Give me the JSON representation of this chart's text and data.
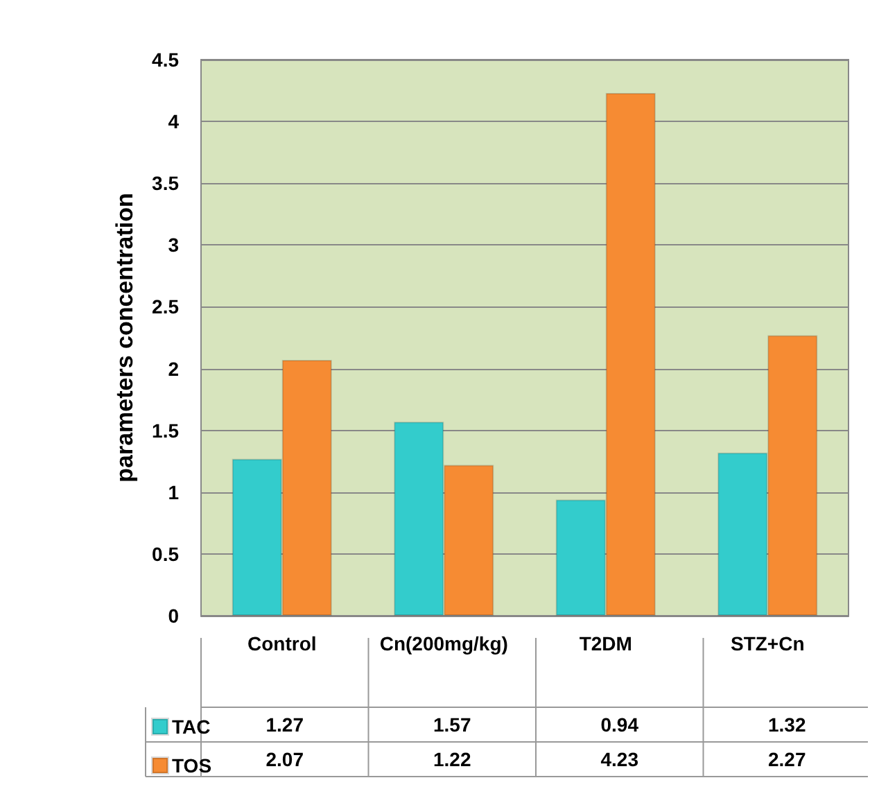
{
  "chart_data": {
    "type": "bar",
    "ylabel": "parameters concentration",
    "categories": [
      "Control",
      "Cn(200mg/kg)",
      "T2DM",
      "STZ+Cn"
    ],
    "series": [
      {
        "name": "TAC",
        "color": "#33cccc",
        "values": [
          1.27,
          1.57,
          0.94,
          1.32
        ]
      },
      {
        "name": "TOS",
        "color": "#f68b33",
        "values": [
          2.07,
          1.22,
          4.23,
          2.27
        ]
      }
    ],
    "ylim": [
      0,
      4.5
    ],
    "yticks": [
      0,
      0.5,
      1,
      1.5,
      2,
      2.5,
      3,
      3.5,
      4,
      4.5
    ],
    "grid": "y",
    "legend": "bottom",
    "data_labels": true
  }
}
